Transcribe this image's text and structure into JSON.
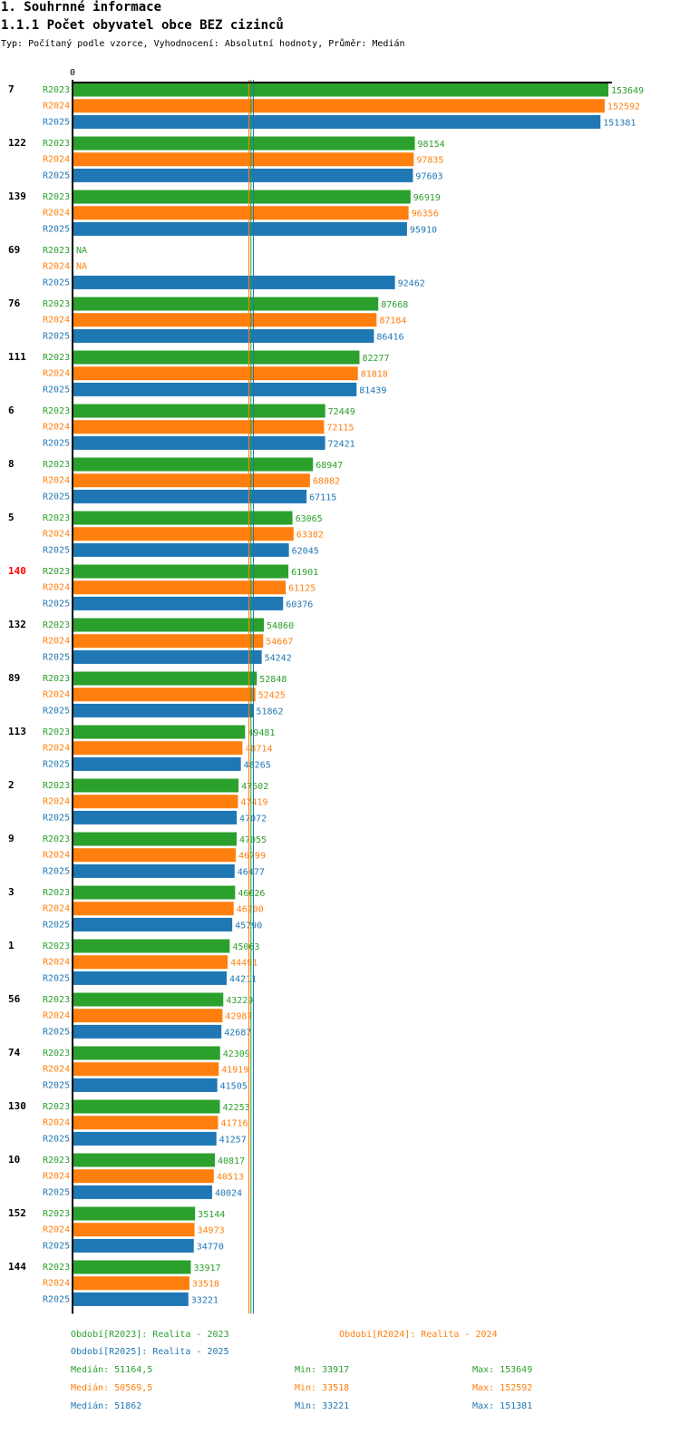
{
  "section_title": "1. Souhrnné informace",
  "chart_title": "1.1.1 Počet obyvatel obce BEZ cizinců",
  "chart_subtitle": "Typ: Počítaný podle vzorce, Vyhodnocení: Absolutní hodnoty, Průměr: Medián",
  "colors": {
    "R2023": "#2ca02c",
    "R2024": "#ff7f0e",
    "R2025": "#1f77b4",
    "highlight": "#ff0000"
  },
  "chart_data": {
    "type": "bar",
    "orientation": "horizontal",
    "axis_zero_label": "0",
    "series_names": [
      "R2023",
      "R2024",
      "R2025"
    ],
    "xlim": [
      0,
      154000
    ],
    "median_lines": [
      51164.5,
      50569.5,
      51862
    ],
    "groups": [
      {
        "label": "7",
        "highlight": false,
        "values": [
          153649,
          152592,
          151381
        ]
      },
      {
        "label": "122",
        "highlight": false,
        "values": [
          98154,
          97835,
          97603
        ]
      },
      {
        "label": "139",
        "highlight": false,
        "values": [
          96919,
          96356,
          95910
        ]
      },
      {
        "label": "69",
        "highlight": false,
        "values": [
          null,
          null,
          92462
        ]
      },
      {
        "label": "76",
        "highlight": false,
        "values": [
          87668,
          87184,
          86416
        ]
      },
      {
        "label": "111",
        "highlight": false,
        "values": [
          82277,
          81818,
          81439
        ]
      },
      {
        "label": "6",
        "highlight": false,
        "values": [
          72449,
          72115,
          72421
        ]
      },
      {
        "label": "8",
        "highlight": false,
        "values": [
          68947,
          68082,
          67115
        ]
      },
      {
        "label": "5",
        "highlight": false,
        "values": [
          63065,
          63382,
          62045
        ]
      },
      {
        "label": "140",
        "highlight": true,
        "values": [
          61901,
          61125,
          60376
        ]
      },
      {
        "label": "132",
        "highlight": false,
        "values": [
          54860,
          54667,
          54242
        ]
      },
      {
        "label": "89",
        "highlight": false,
        "values": [
          52848,
          52425,
          51862
        ]
      },
      {
        "label": "113",
        "highlight": false,
        "values": [
          49481,
          48714,
          48265
        ]
      },
      {
        "label": "2",
        "highlight": false,
        "values": [
          47602,
          47419,
          47072
        ]
      },
      {
        "label": "9",
        "highlight": false,
        "values": [
          47055,
          46799,
          46477
        ]
      },
      {
        "label": "3",
        "highlight": false,
        "values": [
          46626,
          46200,
          45790
        ]
      },
      {
        "label": "1",
        "highlight": false,
        "values": [
          45063,
          44491,
          44211
        ]
      },
      {
        "label": "56",
        "highlight": false,
        "values": [
          43229,
          42987,
          42687
        ]
      },
      {
        "label": "74",
        "highlight": false,
        "values": [
          42309,
          41919,
          41505
        ]
      },
      {
        "label": "130",
        "highlight": false,
        "values": [
          42253,
          41716,
          41257
        ]
      },
      {
        "label": "10",
        "highlight": false,
        "values": [
          40817,
          40513,
          40024
        ]
      },
      {
        "label": "152",
        "highlight": false,
        "values": [
          35144,
          34973,
          34770
        ]
      },
      {
        "label": "144",
        "highlight": false,
        "values": [
          33917,
          33518,
          33221
        ]
      }
    ],
    "na_label": "NA"
  },
  "legend": {
    "items": [
      "Období[R2023]: Realita - 2023",
      "Období[R2024]: Realita - 2024",
      "Období[R2025]: Realita - 2025"
    ],
    "stats": [
      {
        "median": "Medián: 51164,5",
        "min": "Min: 33917",
        "max": "Max: 153649"
      },
      {
        "median": "Medián: 50569,5",
        "min": "Min: 33518",
        "max": "Max: 152592"
      },
      {
        "median": "Medián: 51862",
        "min": "Min: 33221",
        "max": "Max: 151381"
      }
    ]
  }
}
